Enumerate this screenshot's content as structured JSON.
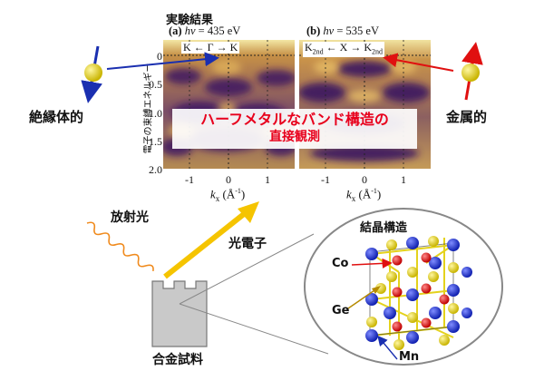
{
  "experiment_title": "実験結果",
  "panel_a": {
    "label": "(a)",
    "hv_symbol": "hν",
    "hv_value": "= 435 eV",
    "top_left": "K",
    "top_mid": "Γ",
    "top_right": "K",
    "arrow_left": "←",
    "arrow_right": "→"
  },
  "panel_b": {
    "label": "(b)",
    "hv_symbol": "hν",
    "hv_value": "= 535 eV",
    "top_left": "K",
    "top_left_sub": "2nd",
    "top_mid": "X",
    "top_right": "K",
    "top_right_sub": "2nd",
    "arrow_left": "←",
    "arrow_right": "→"
  },
  "y_axis": {
    "label": "電子の束縛エネルギー",
    "ticks": [
      "0",
      "0.5",
      "1.0",
      "1.5",
      "2.0"
    ]
  },
  "x_axis": {
    "ticks": [
      "-1",
      "0",
      "1"
    ],
    "label_k": "k",
    "label_sub": "x",
    "label_unit": "(Å",
    "label_exp": "-1",
    "label_close": ")"
  },
  "banner": {
    "line1": "ハーフメタルなバンド構造の",
    "line2": "直接観測"
  },
  "labels": {
    "insulator": "絶縁体的",
    "metal": "金属的",
    "radiation": "放射光",
    "photoelectron": "光電子",
    "sample": "合金試料",
    "crystal": "結晶構造",
    "co": "Co",
    "ge": "Ge",
    "mn": "Mn"
  },
  "colors": {
    "blue_arrow": "#1a2fb0",
    "red_arrow": "#e01010",
    "yellow_arrow": "#f5c400",
    "orange_wave": "#f08a1c",
    "banner_text": "#e8001c",
    "band_dark": "#3a1560",
    "band_light": "#d3a348",
    "atom_yellow": "#e4d21c",
    "atom_red": "#e01010",
    "atom_blue": "#1f2fcf"
  }
}
